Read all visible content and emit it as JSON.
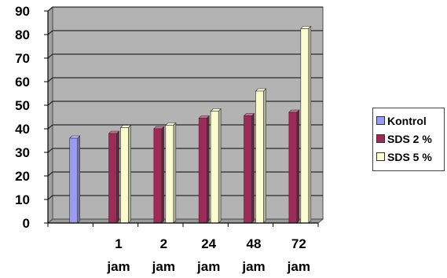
{
  "chart_data": {
    "type": "bar",
    "title": "",
    "xlabel": "",
    "ylabel": "",
    "ylim": [
      0,
      90
    ],
    "yticks": [
      "0",
      "10",
      "20",
      "30",
      "40",
      "50",
      "60",
      "70",
      "80",
      "90"
    ],
    "grid": true,
    "legend_position": "right",
    "categories": [
      {
        "line1": "",
        "line2": ""
      },
      {
        "line1": "1",
        "line2": "jam"
      },
      {
        "line1": "2",
        "line2": "jam"
      },
      {
        "line1": "24",
        "line2": "jam"
      },
      {
        "line1": "48",
        "line2": "jam"
      },
      {
        "line1": "72",
        "line2": "jam"
      }
    ],
    "series": [
      {
        "name": "Kontrol",
        "color": "#9a9cf2",
        "values": [
          36,
          null,
          null,
          null,
          null,
          null
        ]
      },
      {
        "name": "SDS 2 %",
        "color": "#9b2b57",
        "values": [
          null,
          38,
          40,
          44.5,
          45.5,
          47
        ]
      },
      {
        "name": "SDS 5 %",
        "color": "#fbfbd2",
        "values": [
          null,
          40.5,
          41.5,
          47.5,
          56,
          82.5
        ]
      }
    ]
  }
}
